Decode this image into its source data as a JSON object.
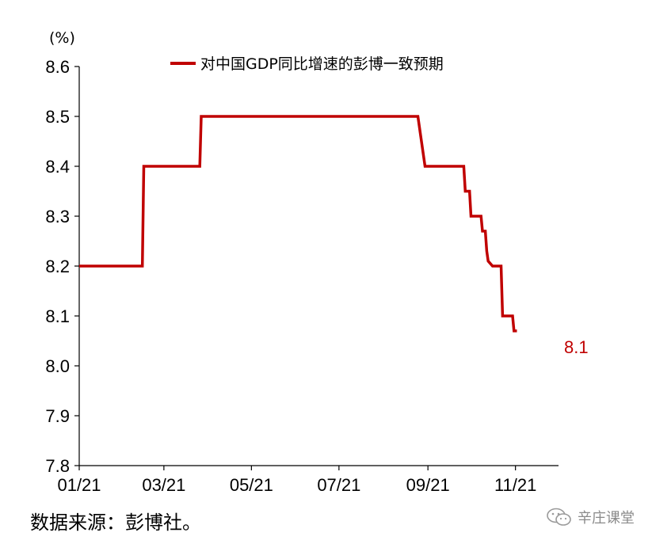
{
  "chart_data": {
    "type": "line",
    "unit_label": "(%)",
    "y_ticks": [
      "7.8",
      "7.9",
      "8.0",
      "8.1",
      "8.2",
      "8.3",
      "8.4",
      "8.5",
      "8.6"
    ],
    "x_ticks": [
      "01/21",
      "03/21",
      "05/21",
      "07/21",
      "09/21",
      "11/21"
    ],
    "ylim": [
      7.8,
      8.6
    ],
    "grid": false,
    "legend_position": "top",
    "series": [
      {
        "name": "对中国GDP同比增速的彭博一致预期",
        "color": "#C00000",
        "points": [
          [
            "2021-01-01",
            8.2
          ],
          [
            "2021-02-14",
            8.2
          ],
          [
            "2021-02-15",
            8.4
          ],
          [
            "2021-03-26",
            8.4
          ],
          [
            "2021-03-27",
            8.5
          ],
          [
            "2021-08-25",
            8.5
          ],
          [
            "2021-08-27",
            8.46
          ],
          [
            "2021-08-30",
            8.4
          ],
          [
            "2021-09-26",
            8.4
          ],
          [
            "2021-09-27",
            8.35
          ],
          [
            "2021-09-30",
            8.35
          ],
          [
            "2021-10-01",
            8.3
          ],
          [
            "2021-10-08",
            8.3
          ],
          [
            "2021-10-09",
            8.27
          ],
          [
            "2021-10-11",
            8.27
          ],
          [
            "2021-10-12",
            8.23
          ],
          [
            "2021-10-13",
            8.21
          ],
          [
            "2021-10-16",
            8.2
          ],
          [
            "2021-10-22",
            8.2
          ],
          [
            "2021-10-23",
            8.1
          ],
          [
            "2021-10-30",
            8.1
          ],
          [
            "2021-10-31",
            8.07
          ],
          [
            "2021-11-02",
            8.07
          ]
        ]
      }
    ],
    "end_annotation": "8.1"
  },
  "source_note": "数据来源：彭博社。",
  "watermark": {
    "icon": "wechat-icon",
    "text": "辛庄课堂"
  }
}
